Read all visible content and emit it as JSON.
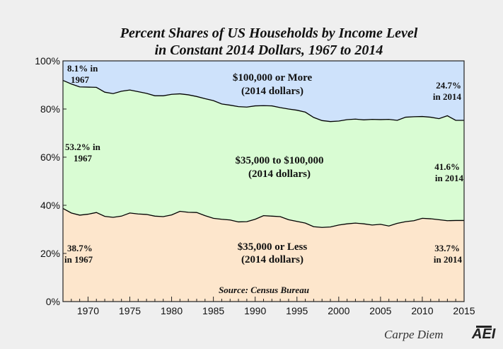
{
  "chart_data": {
    "type": "area",
    "stacked": true,
    "title": "Percent Shares of US Households by Income Level",
    "subtitle": "in Constant 2014 Dollars, 1967 to 2014",
    "xlim": [
      1967,
      2015
    ],
    "ylim": [
      0,
      100
    ],
    "x_ticks": [
      "1970",
      "1975",
      "1980",
      "1985",
      "1990",
      "1995",
      "2000",
      "2005",
      "2010",
      "2015"
    ],
    "y_ticks": [
      "0%",
      "20%",
      "40%",
      "60%",
      "80%",
      "100%"
    ],
    "grid": false,
    "legend": "none",
    "x": [
      1967,
      1968,
      1969,
      1970,
      1971,
      1972,
      1973,
      1974,
      1975,
      1976,
      1977,
      1978,
      1979,
      1980,
      1981,
      1982,
      1983,
      1984,
      1985,
      1986,
      1987,
      1988,
      1989,
      1990,
      1991,
      1992,
      1993,
      1994,
      1995,
      1996,
      1997,
      1998,
      1999,
      2000,
      2001,
      2002,
      2003,
      2004,
      2005,
      2006,
      2007,
      2008,
      2009,
      2010,
      2011,
      2012,
      2013,
      2014
    ],
    "series": [
      {
        "color": "#fde6cc",
        "values": [
          38.7,
          36.8,
          35.9,
          36.3,
          37.0,
          35.4,
          35.0,
          35.5,
          36.8,
          36.4,
          36.2,
          35.5,
          35.3,
          36.0,
          37.5,
          37.1,
          37.0,
          35.7,
          34.6,
          34.2,
          33.9,
          33.1,
          33.2,
          34.2,
          35.7,
          35.5,
          35.3,
          34.0,
          33.3,
          32.6,
          31.1,
          30.8,
          31.0,
          31.8,
          32.3,
          32.6,
          32.3,
          31.8,
          32.1,
          31.4,
          32.5,
          33.2,
          33.6,
          34.6,
          34.4,
          34.0,
          33.6,
          33.7
        ]
      },
      {
        "color": "#d9fcd3",
        "values": [
          53.2,
          53.6,
          53.3,
          52.8,
          52.0,
          51.6,
          51.4,
          51.9,
          51.1,
          50.8,
          50.3,
          50.0,
          50.2,
          50.1,
          48.8,
          48.8,
          48.2,
          48.6,
          48.9,
          47.9,
          47.7,
          47.9,
          47.6,
          47.1,
          45.7,
          45.8,
          45.3,
          46.0,
          46.2,
          46.1,
          45.4,
          44.4,
          43.8,
          43.2,
          43.3,
          43.2,
          43.2,
          43.9,
          43.5,
          44.3,
          42.8,
          43.4,
          43.2,
          42.3,
          42.2,
          42.0,
          43.6,
          41.6
        ]
      },
      {
        "color": "#cee2fb",
        "values": [
          8.1,
          9.6,
          10.8,
          10.9,
          11.0,
          13.0,
          13.6,
          12.6,
          12.1,
          12.8,
          13.5,
          14.5,
          14.5,
          13.9,
          13.7,
          14.1,
          14.8,
          15.7,
          16.5,
          17.9,
          18.4,
          19.0,
          19.2,
          18.7,
          18.6,
          18.7,
          19.4,
          20.0,
          20.5,
          21.3,
          23.5,
          24.8,
          25.2,
          25.0,
          24.4,
          24.2,
          24.5,
          24.3,
          24.4,
          24.3,
          24.7,
          23.4,
          23.2,
          23.1,
          23.4,
          24.0,
          22.8,
          24.7
        ]
      }
    ]
  },
  "labels": {
    "top_band": "$100,000 or More",
    "top_band_units": "(2014 dollars)",
    "mid_band": "$35,000 to $100,000",
    "mid_band_units": "(2014 dollars)",
    "low_band": "$35,000 or Less",
    "low_band_units": "(2014 dollars)",
    "top_start_1": "8.1% in",
    "top_start_2": "1967",
    "top_end_1": "24.7%",
    "top_end_2": "in 2014",
    "mid_start_1": "53.2% in",
    "mid_start_2": "1967",
    "mid_end_1": "41.6%",
    "mid_end_2": "in 2014",
    "low_start_1": "38.7%",
    "low_start_2": "in 1967",
    "low_end_1": "33.7%",
    "low_end_2": "in 2014",
    "source": "Source: Census Bureau"
  },
  "branding": {
    "text": "Carpe Diem",
    "logo": "AEI"
  }
}
